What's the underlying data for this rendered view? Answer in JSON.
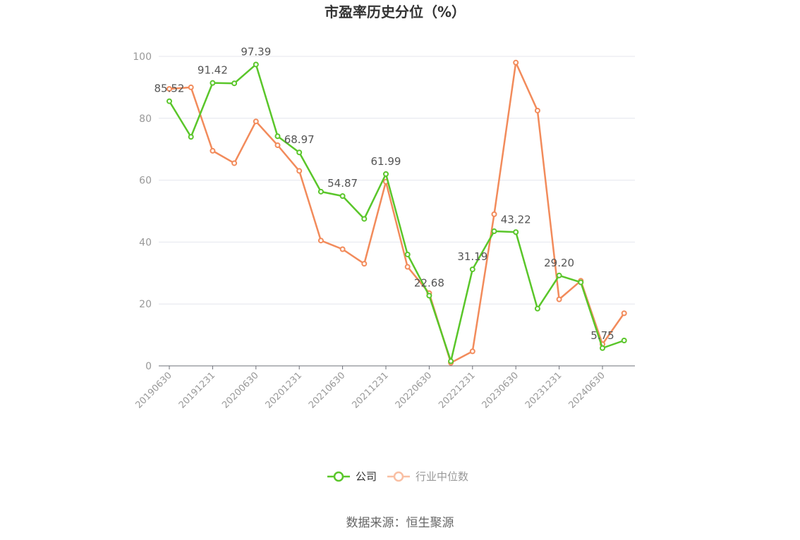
{
  "chart_data": {
    "type": "line",
    "title": "市盈率历史分位（%）",
    "x": [
      "20190630",
      "20190930",
      "20191231",
      "20200331",
      "20200630",
      "20200930",
      "20201231",
      "20210331",
      "20210630",
      "20210930",
      "20211231",
      "20220331",
      "20220630",
      "20220930",
      "20221231",
      "20230331",
      "20230630",
      "20230930",
      "20231231",
      "20240331",
      "20240630",
      "20240930"
    ],
    "x_tick_labels": [
      "20190630",
      "20191231",
      "20200630",
      "20201231",
      "20210630",
      "20211231",
      "20220630",
      "20221231",
      "20230630",
      "20231231",
      "20240630"
    ],
    "ylim": [
      0,
      100
    ],
    "yticks": [
      0,
      20,
      40,
      60,
      80,
      100
    ],
    "grid": true,
    "legend_position": "bottom-center",
    "series": [
      {
        "name": "公司",
        "color": "#5ac62a",
        "values": [
          85.52,
          74.0,
          91.42,
          91.3,
          97.39,
          74.2,
          68.97,
          56.3,
          54.87,
          47.5,
          61.99,
          36.0,
          22.68,
          1.5,
          31.19,
          43.5,
          43.22,
          18.5,
          29.2,
          27.0,
          5.75,
          8.2
        ],
        "labels": {
          "0": "85.52",
          "2": "91.42",
          "4": "97.39",
          "6": "68.97",
          "8": "54.87",
          "10": "61.99",
          "12": "22.68",
          "14": "31.19",
          "16": "43.22",
          "18": "29.20",
          "20": "5.75"
        }
      },
      {
        "name": "行业中位数",
        "color": "#f28b5b",
        "legend_color": "#f9bfa3",
        "values": [
          89.5,
          90.0,
          69.5,
          65.5,
          79.0,
          71.3,
          63.0,
          40.5,
          37.7,
          33.0,
          59.5,
          32.0,
          23.5,
          1.0,
          4.7,
          49.0,
          98.0,
          82.5,
          21.5,
          27.5,
          7.0,
          17.0
        ]
      }
    ]
  },
  "source": "数据来源：恒生聚源"
}
